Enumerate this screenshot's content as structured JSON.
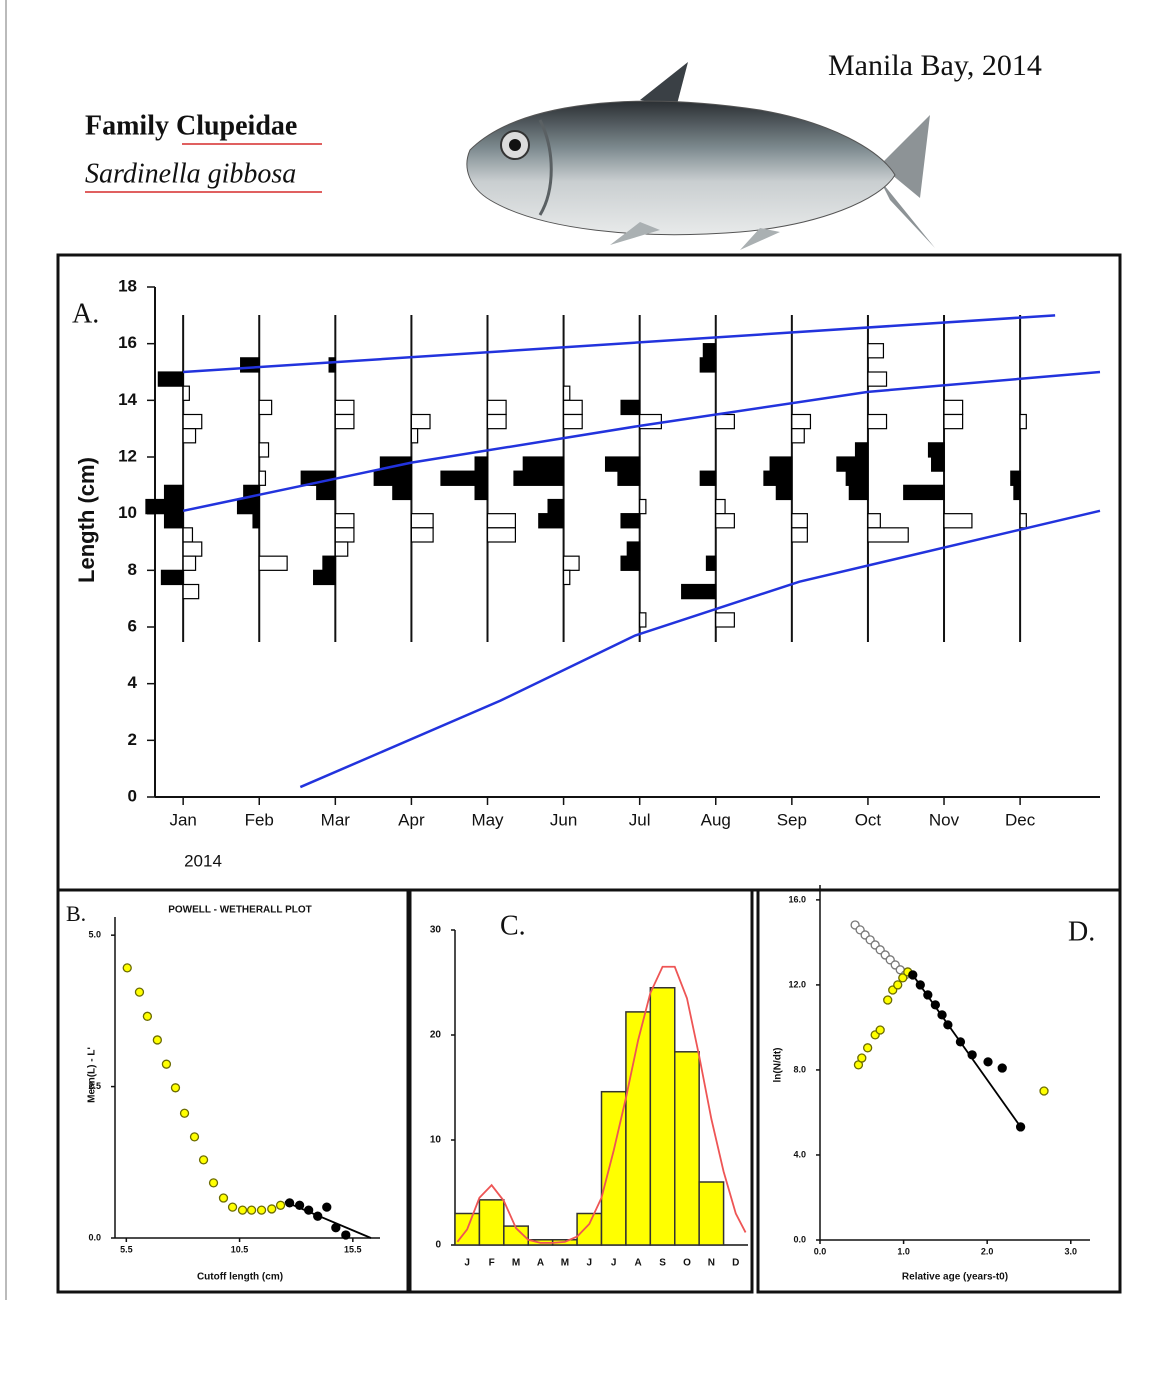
{
  "header": {
    "family": "Family Clupeidae",
    "species": "Sardinella gibbosa",
    "location": "Manila Bay, 2014"
  },
  "chart_data": [
    {
      "type": "lfq",
      "panel_label": "A.",
      "y_label": "Length (cm)",
      "x_note": "2014",
      "xlim": [
        -0.37,
        12.05
      ],
      "ylim": [
        0,
        18
      ],
      "xticks": [
        {
          "value": 0,
          "label": "Jan"
        },
        {
          "value": 1,
          "label": "Feb"
        },
        {
          "value": 2,
          "label": "Mar"
        },
        {
          "value": 3,
          "label": "Apr"
        },
        {
          "value": 4,
          "label": "May"
        },
        {
          "value": 5,
          "label": "Jun"
        },
        {
          "value": 6,
          "label": "Jul"
        },
        {
          "value": 7,
          "label": "Aug"
        },
        {
          "value": 8,
          "label": "Sep"
        },
        {
          "value": 9,
          "label": "Oct"
        },
        {
          "value": 10,
          "label": "Nov"
        },
        {
          "value": 11,
          "label": "Dec"
        }
      ],
      "yticks": [
        0,
        2,
        4,
        6,
        8,
        10,
        12,
        14,
        16,
        18
      ],
      "bin_width": 0.5,
      "histograms": [
        {
          "x": 0,
          "lengths": [
            14.75,
            14.25,
            13.25,
            12.75,
            10.75,
            10.25,
            9.75,
            9.25,
            8.75,
            8.25,
            7.75,
            7.25
          ],
          "values": [
            0.4,
            -0.1,
            -0.3,
            -0.2,
            0.3,
            0.6,
            0.3,
            -0.15,
            -0.3,
            -0.2,
            0.35,
            -0.25
          ]
        },
        {
          "x": 1,
          "lengths": [
            15.25,
            13.75,
            12.25,
            11.25,
            10.75,
            10.25,
            9.75,
            8.25
          ],
          "values": [
            0.3,
            -0.2,
            -0.15,
            -0.1,
            0.25,
            0.35,
            0.1,
            -0.45
          ]
        },
        {
          "x": 2,
          "lengths": [
            15.25,
            13.75,
            13.25,
            11.25,
            10.75,
            9.75,
            9.25,
            8.75,
            8.25,
            7.75
          ],
          "values": [
            0.1,
            -0.3,
            -0.3,
            0.55,
            0.3,
            -0.3,
            -0.3,
            -0.2,
            0.2,
            0.35
          ]
        },
        {
          "x": 3,
          "lengths": [
            13.25,
            12.75,
            11.75,
            11.25,
            10.75,
            9.75,
            9.25
          ],
          "values": [
            -0.3,
            -0.1,
            0.5,
            0.6,
            0.3,
            -0.35,
            -0.35
          ]
        },
        {
          "x": 4,
          "lengths": [
            13.75,
            13.25,
            11.75,
            11.25,
            10.75,
            9.75,
            9.25
          ],
          "values": [
            -0.3,
            -0.3,
            0.2,
            0.75,
            0.2,
            -0.45,
            -0.45
          ]
        },
        {
          "x": 5,
          "lengths": [
            14.25,
            13.75,
            13.25,
            11.75,
            11.25,
            10.25,
            9.75,
            8.25,
            7.75
          ],
          "values": [
            -0.1,
            -0.3,
            -0.3,
            0.65,
            0.8,
            0.25,
            0.4,
            -0.25,
            -0.1
          ]
        },
        {
          "x": 6,
          "lengths": [
            13.75,
            13.25,
            11.75,
            11.25,
            10.25,
            9.75,
            8.75,
            8.25,
            6.25
          ],
          "values": [
            0.3,
            -0.35,
            0.55,
            0.35,
            -0.1,
            0.3,
            0.2,
            0.3,
            -0.1
          ]
        },
        {
          "x": 7,
          "lengths": [
            15.75,
            15.25,
            13.25,
            11.25,
            10.25,
            9.75,
            8.25,
            7.25,
            6.25
          ],
          "values": [
            0.2,
            0.25,
            -0.3,
            0.25,
            -0.15,
            -0.3,
            0.15,
            0.55,
            -0.3
          ]
        },
        {
          "x": 8,
          "lengths": [
            13.25,
            12.75,
            11.75,
            11.25,
            10.75,
            9.75,
            9.25
          ],
          "values": [
            -0.3,
            -0.2,
            0.35,
            0.45,
            0.25,
            -0.25,
            -0.25
          ]
        },
        {
          "x": 9,
          "lengths": [
            15.75,
            14.75,
            13.25,
            12.25,
            11.75,
            11.25,
            10.75,
            9.75,
            9.25
          ],
          "values": [
            -0.25,
            -0.3,
            -0.3,
            0.2,
            0.5,
            0.35,
            0.3,
            -0.2,
            -0.65
          ]
        },
        {
          "x": 10,
          "lengths": [
            13.75,
            13.25,
            12.25,
            11.75,
            10.75,
            9.75
          ],
          "values": [
            -0.3,
            -0.3,
            0.25,
            0.2,
            0.65,
            -0.45
          ]
        },
        {
          "x": 11,
          "lengths": [
            13.25,
            11.25,
            10.75,
            9.75
          ],
          "values": [
            -0.1,
            0.15,
            0.1,
            -0.1
          ]
        }
      ],
      "series": [
        {
          "kind": "line",
          "color": "#2233dd",
          "x": [
            0,
            11.46
          ],
          "values": [
            15,
            17
          ]
        },
        {
          "kind": "line",
          "color": "#2233dd",
          "x": [
            0,
            3,
            6,
            9,
            12.05
          ],
          "values": [
            10.1,
            11.8,
            13.1,
            14.3,
            15
          ]
        },
        {
          "kind": "line",
          "color": "#2233dd",
          "x": [
            1.54,
            4.17,
            5.94,
            8.1,
            12.05
          ],
          "values": [
            0.35,
            3.4,
            5.7,
            7.6,
            10.1
          ]
        }
      ]
    },
    {
      "type": "scatter",
      "panel_label": "B.",
      "title": "POWELL - WETHERALL PLOT",
      "x_label": "Cutoff length (cm)",
      "y_label": "Mean(L) - L'",
      "xlim": [
        5.0,
        16.7
      ],
      "ylim": [
        0,
        5.3
      ],
      "xticks": [
        5.5,
        10.5,
        15.5
      ],
      "yticks": [
        {
          "value": 0,
          "label": "0.0"
        },
        2.5,
        {
          "value": 5,
          "label": "5.0"
        }
      ],
      "series": [
        {
          "kind": "scatter",
          "color": "#ffff00",
          "edge": "#6b6b00",
          "x": [
            5.54,
            6.08,
            6.43,
            6.87,
            7.27,
            7.67,
            8.07,
            8.51,
            8.91,
            9.35,
            9.79,
            10.19,
            10.63,
            11.03,
            11.47,
            11.92,
            12.31
          ],
          "values": [
            4.46,
            4.06,
            3.66,
            3.27,
            2.87,
            2.48,
            2.06,
            1.67,
            1.29,
            0.91,
            0.66,
            0.51,
            0.46,
            0.46,
            0.46,
            0.48,
            0.54
          ]
        },
        {
          "kind": "scatter",
          "color": "#000000",
          "edge": "#000000",
          "x": [
            12.71,
            13.15,
            13.55,
            13.95,
            14.35,
            14.75,
            15.19
          ],
          "values": [
            0.58,
            0.54,
            0.46,
            0.36,
            0.51,
            0.17,
            0.05
          ]
        },
        {
          "kind": "line",
          "color": "#000000",
          "x": [
            12.5,
            16.3
          ],
          "values": [
            0.6,
            0
          ]
        }
      ]
    },
    {
      "type": "bar",
      "panel_label": "C.",
      "categories": [
        "J",
        "F",
        "M",
        "A",
        "M",
        "J",
        "J",
        "A",
        "S",
        "O",
        "N",
        "D"
      ],
      "values": [
        3.0,
        4.3,
        1.8,
        0.5,
        0.5,
        3.0,
        14.6,
        22.2,
        24.5,
        18.4,
        6.0,
        0
      ],
      "color": "#ffff00",
      "ylim": [
        0,
        30
      ],
      "yticks": [
        0,
        10,
        20,
        30
      ],
      "series": [
        {
          "kind": "line",
          "color": "#ee5555",
          "x": [
            -0.4,
            0,
            0.5,
            1,
            1.5,
            2,
            2.5,
            3,
            3.5,
            4,
            4.5,
            5,
            5.5,
            6,
            6.5,
            7,
            7.5,
            8,
            8.5,
            9,
            9.5,
            10,
            10.5,
            11,
            11.4
          ],
          "values": [
            0.3,
            1.5,
            4.5,
            5.7,
            4.2,
            1.6,
            0.5,
            0.2,
            0.2,
            0.3,
            0.8,
            2,
            4.5,
            9,
            14,
            19.5,
            24,
            26.5,
            26.5,
            23.5,
            18,
            12,
            7,
            3,
            1.2
          ]
        }
      ]
    },
    {
      "type": "scatter",
      "panel_label": "D.",
      "x_label": "Relative age (years-t0)",
      "y_label": "ln(N/dt)",
      "xlim": [
        0,
        3.23
      ],
      "ylim": [
        0,
        16.7
      ],
      "xticks": [
        {
          "value": 0,
          "label": "0.0"
        },
        {
          "value": 1,
          "label": "1.0"
        },
        {
          "value": 2,
          "label": "2.0"
        },
        {
          "value": 3,
          "label": "3.0"
        }
      ],
      "yticks": [
        {
          "value": 0,
          "label": "0.0"
        },
        {
          "value": 4,
          "label": "4.0"
        },
        {
          "value": 8,
          "label": "8.0"
        },
        {
          "value": 12,
          "label": "12.0"
        },
        {
          "value": 16,
          "label": "16.0"
        }
      ],
      "series": [
        {
          "kind": "scatter",
          "color": "#ffffff",
          "edge": "#777777",
          "x": [
            0.42,
            0.48,
            0.54,
            0.6,
            0.66,
            0.72,
            0.78,
            0.84,
            0.9,
            0.96,
            1.02
          ],
          "values": [
            14.82,
            14.59,
            14.35,
            14.12,
            13.88,
            13.65,
            13.41,
            13.18,
            12.94,
            12.71,
            12.47
          ]
        },
        {
          "kind": "scatter",
          "color": "#ffff00",
          "edge": "#6b6b00",
          "x": [
            0.46,
            0.5,
            0.57,
            0.66,
            0.72,
            0.81,
            0.87,
            0.93,
            0.99,
            1.05,
            2.68
          ],
          "values": [
            8.24,
            8.56,
            9.04,
            9.65,
            9.88,
            11.29,
            11.76,
            12.0,
            12.33,
            12.61,
            7.01
          ]
        },
        {
          "kind": "scatter",
          "color": "#000000",
          "edge": "#000000",
          "x": [
            1.11,
            1.2,
            1.29,
            1.38,
            1.46,
            1.53,
            1.68,
            1.82,
            2.01,
            2.18,
            2.4
          ],
          "values": [
            12.47,
            12.0,
            11.53,
            11.06,
            10.59,
            10.12,
            9.32,
            8.71,
            8.38,
            8.09,
            5.32
          ]
        },
        {
          "kind": "line",
          "color": "#000000",
          "x": [
            1.11,
            2.4
          ],
          "values": [
            12.47,
            5.32
          ]
        }
      ]
    }
  ]
}
